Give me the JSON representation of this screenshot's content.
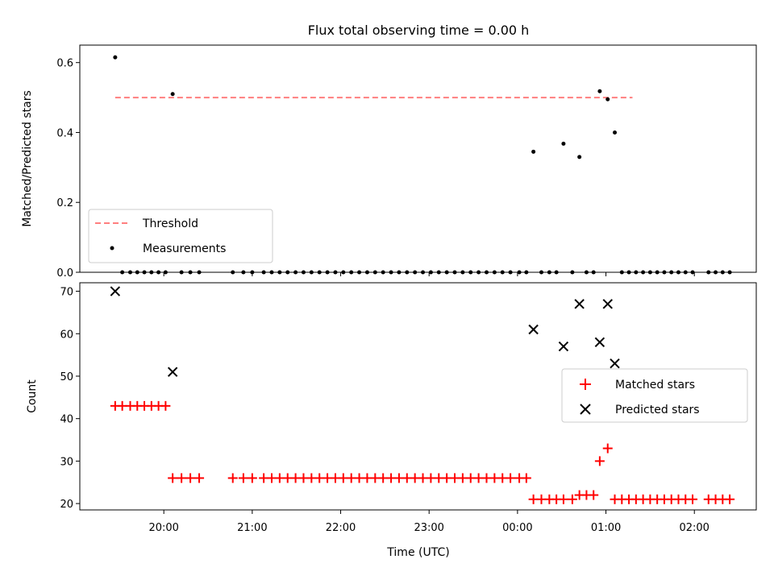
{
  "chart_data": {
    "title": "Flux total observing time = 0.00 h",
    "xlabel": "Time (UTC)",
    "x_unit": "hours since 00:00 UTC (times before midnight are negative)",
    "xlim": [
      -4.95,
      2.7
    ],
    "xticks": [
      -4,
      -3,
      -2,
      -1,
      0,
      1,
      2
    ],
    "xtick_labels": [
      "20:00",
      "21:00",
      "22:00",
      "23:00",
      "00:00",
      "01:00",
      "02:00"
    ],
    "panels": [
      {
        "type": "scatter",
        "ylabel": "Matched/Predicted stars",
        "ylim": [
          0,
          0.65
        ],
        "yticks": [
          0,
          0.2,
          0.4,
          0.6
        ],
        "ytick_labels": [
          "0.0",
          "0.2",
          "0.4",
          "0.6"
        ],
        "legend_location": "lower left",
        "threshold": {
          "name": "Threshold",
          "color": "#ff7f7f",
          "style": "dashed",
          "value": 0.5,
          "x_range": [
            -4.55,
            1.3
          ]
        },
        "series": [
          {
            "name": "Measurements",
            "color": "#000000",
            "marker": "dot",
            "points": [
              [
                -4.55,
                0.615
              ],
              [
                -3.9,
                0.51
              ],
              [
                0.18,
                0.345
              ],
              [
                0.52,
                0.368
              ],
              [
                0.7,
                0.33
              ],
              [
                0.93,
                0.518
              ],
              [
                1.02,
                0.495
              ],
              [
                1.1,
                0.4
              ],
              [
                -4.47,
                0
              ],
              [
                -4.38,
                0
              ],
              [
                -4.3,
                0
              ],
              [
                -4.22,
                0
              ],
              [
                -4.14,
                0
              ],
              [
                -4.06,
                0
              ],
              [
                -3.98,
                0
              ],
              [
                -3.8,
                0
              ],
              [
                -3.7,
                0
              ],
              [
                -3.6,
                0
              ],
              [
                -3.22,
                0
              ],
              [
                -3.1,
                0
              ],
              [
                -3.0,
                0
              ],
              [
                -2.87,
                0
              ],
              [
                -2.78,
                0
              ],
              [
                -2.69,
                0
              ],
              [
                -2.6,
                0
              ],
              [
                -2.51,
                0
              ],
              [
                -2.42,
                0
              ],
              [
                -2.33,
                0
              ],
              [
                -2.24,
                0
              ],
              [
                -2.15,
                0
              ],
              [
                -2.06,
                0
              ],
              [
                -1.97,
                0
              ],
              [
                -1.88,
                0
              ],
              [
                -1.79,
                0
              ],
              [
                -1.7,
                0
              ],
              [
                -1.61,
                0
              ],
              [
                -1.52,
                0
              ],
              [
                -1.43,
                0
              ],
              [
                -1.34,
                0
              ],
              [
                -1.25,
                0
              ],
              [
                -1.16,
                0
              ],
              [
                -1.07,
                0
              ],
              [
                -0.98,
                0
              ],
              [
                -0.89,
                0
              ],
              [
                -0.8,
                0
              ],
              [
                -0.71,
                0
              ],
              [
                -0.62,
                0
              ],
              [
                -0.53,
                0
              ],
              [
                -0.44,
                0
              ],
              [
                -0.35,
                0
              ],
              [
                -0.26,
                0
              ],
              [
                -0.17,
                0
              ],
              [
                -0.08,
                0
              ],
              [
                0.02,
                0
              ],
              [
                0.1,
                0
              ],
              [
                0.27,
                0
              ],
              [
                0.36,
                0
              ],
              [
                0.44,
                0
              ],
              [
                0.62,
                0
              ],
              [
                0.78,
                0
              ],
              [
                0.86,
                0
              ],
              [
                1.18,
                0
              ],
              [
                1.26,
                0
              ],
              [
                1.34,
                0
              ],
              [
                1.42,
                0
              ],
              [
                1.5,
                0
              ],
              [
                1.58,
                0
              ],
              [
                1.66,
                0
              ],
              [
                1.74,
                0
              ],
              [
                1.82,
                0
              ],
              [
                1.9,
                0
              ],
              [
                1.98,
                0
              ],
              [
                2.16,
                0
              ],
              [
                2.24,
                0
              ],
              [
                2.32,
                0
              ],
              [
                2.4,
                0
              ]
            ]
          }
        ]
      },
      {
        "type": "scatter",
        "ylabel": "Count",
        "ylim": [
          18.5,
          72
        ],
        "yticks": [
          20,
          30,
          40,
          50,
          60,
          70
        ],
        "ytick_labels": [
          "20",
          "30",
          "40",
          "50",
          "60",
          "70"
        ],
        "legend_location": "center right",
        "series": [
          {
            "name": "Matched stars",
            "color": "#ff0000",
            "marker": "plus",
            "points": [
              [
                -4.55,
                43
              ],
              [
                -4.47,
                43
              ],
              [
                -4.38,
                43
              ],
              [
                -4.3,
                43
              ],
              [
                -4.22,
                43
              ],
              [
                -4.14,
                43
              ],
              [
                -4.06,
                43
              ],
              [
                -3.98,
                43
              ],
              [
                -3.9,
                26
              ],
              [
                -3.8,
                26
              ],
              [
                -3.7,
                26
              ],
              [
                -3.6,
                26
              ],
              [
                -3.22,
                26
              ],
              [
                -3.1,
                26
              ],
              [
                -3.0,
                26
              ],
              [
                -2.87,
                26
              ],
              [
                -2.78,
                26
              ],
              [
                -2.69,
                26
              ],
              [
                -2.6,
                26
              ],
              [
                -2.51,
                26
              ],
              [
                -2.42,
                26
              ],
              [
                -2.33,
                26
              ],
              [
                -2.24,
                26
              ],
              [
                -2.15,
                26
              ],
              [
                -2.06,
                26
              ],
              [
                -1.97,
                26
              ],
              [
                -1.88,
                26
              ],
              [
                -1.79,
                26
              ],
              [
                -1.7,
                26
              ],
              [
                -1.61,
                26
              ],
              [
                -1.52,
                26
              ],
              [
                -1.43,
                26
              ],
              [
                -1.34,
                26
              ],
              [
                -1.25,
                26
              ],
              [
                -1.16,
                26
              ],
              [
                -1.07,
                26
              ],
              [
                -0.98,
                26
              ],
              [
                -0.89,
                26
              ],
              [
                -0.8,
                26
              ],
              [
                -0.71,
                26
              ],
              [
                -0.62,
                26
              ],
              [
                -0.53,
                26
              ],
              [
                -0.44,
                26
              ],
              [
                -0.35,
                26
              ],
              [
                -0.26,
                26
              ],
              [
                -0.17,
                26
              ],
              [
                -0.08,
                26
              ],
              [
                0.02,
                26
              ],
              [
                0.1,
                26
              ],
              [
                0.18,
                21
              ],
              [
                0.27,
                21
              ],
              [
                0.36,
                21
              ],
              [
                0.44,
                21
              ],
              [
                0.52,
                21
              ],
              [
                0.62,
                21
              ],
              [
                0.7,
                22
              ],
              [
                0.78,
                22
              ],
              [
                0.86,
                22
              ],
              [
                0.93,
                30
              ],
              [
                1.02,
                33
              ],
              [
                1.1,
                21
              ],
              [
                1.18,
                21
              ],
              [
                1.26,
                21
              ],
              [
                1.34,
                21
              ],
              [
                1.42,
                21
              ],
              [
                1.5,
                21
              ],
              [
                1.58,
                21
              ],
              [
                1.66,
                21
              ],
              [
                1.74,
                21
              ],
              [
                1.82,
                21
              ],
              [
                1.9,
                21
              ],
              [
                1.98,
                21
              ],
              [
                2.16,
                21
              ],
              [
                2.24,
                21
              ],
              [
                2.32,
                21
              ],
              [
                2.4,
                21
              ]
            ]
          },
          {
            "name": "Predicted stars",
            "color": "#000000",
            "marker": "x",
            "points": [
              [
                -4.55,
                70
              ],
              [
                -3.9,
                51
              ],
              [
                0.18,
                61
              ],
              [
                0.52,
                57
              ],
              [
                0.7,
                67
              ],
              [
                0.93,
                58
              ],
              [
                1.02,
                67
              ],
              [
                1.1,
                53
              ]
            ]
          }
        ]
      }
    ]
  }
}
